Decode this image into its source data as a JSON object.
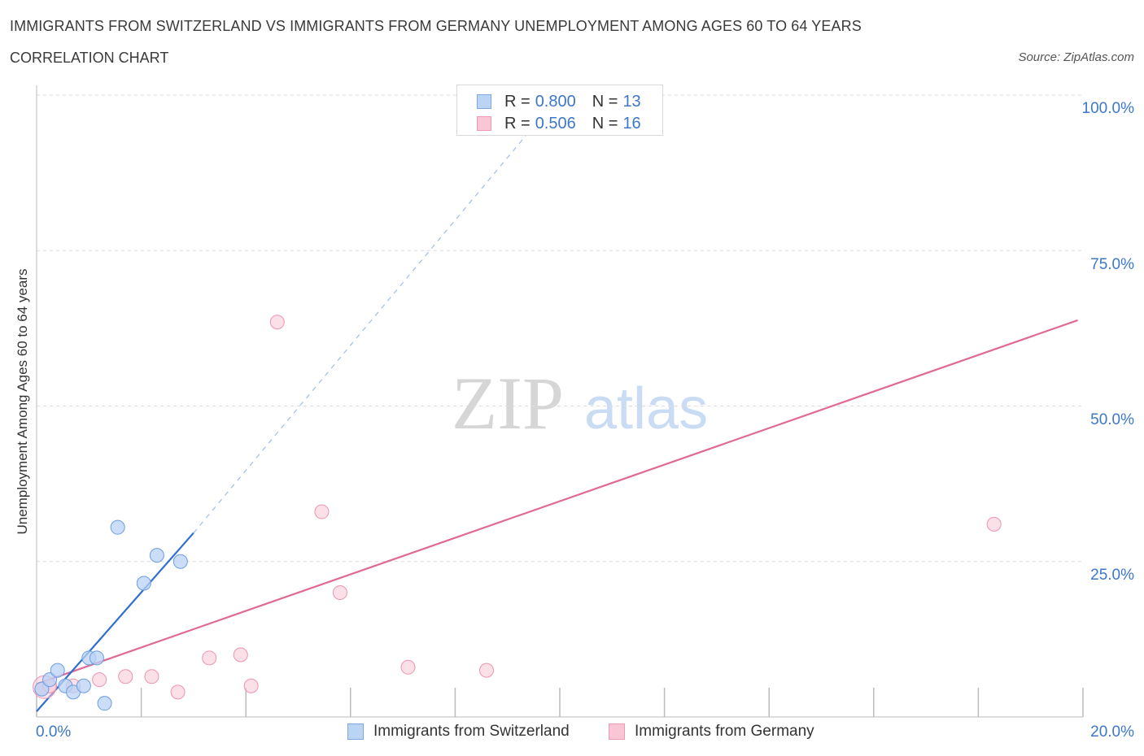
{
  "header": {
    "title": "IMMIGRANTS FROM SWITZERLAND VS IMMIGRANTS FROM GERMANY UNEMPLOYMENT AMONG AGES 60 TO 64 YEARS",
    "subtitle": "CORRELATION CHART",
    "source": "Source: ZipAtlas.com"
  },
  "watermark": {
    "zip": "ZIP",
    "atlas": "atlas"
  },
  "legend_stats": [
    {
      "r_label": "R =",
      "r_value": "0.800",
      "n_label": "N =",
      "n_value": "13",
      "fill": "#bcd4f4",
      "stroke": "#7fa8e0"
    },
    {
      "r_label": "R =",
      "r_value": "0.506",
      "n_label": "N =",
      "n_value": "16",
      "fill": "#f9c6d6",
      "stroke": "#ee9ab4"
    }
  ],
  "colors": {
    "blue_line": "#2f6fd0",
    "pink_line": "#e06a96",
    "blue_point_fill": "#b9d2f4",
    "blue_point_stroke": "#6d9ee0",
    "pink_point_fill": "#f9cbd9",
    "pink_point_stroke": "#ec95b1",
    "tick_text": "#3d78c8",
    "grid": "#dcdcdc"
  },
  "chart_data": {
    "type": "scatter",
    "title": "IMMIGRANTS FROM SWITZERLAND VS IMMIGRANTS FROM GERMANY UNEMPLOYMENT AMONG AGES 60 TO 64 YEARS",
    "xlabel": "",
    "ylabel": "Unemployment Among Ages 60 to 64 years",
    "xlim": [
      0,
      20
    ],
    "ylim": [
      0,
      100
    ],
    "x_tick_labels": [
      "0.0%",
      "20.0%"
    ],
    "y_tick_labels": [
      "25.0%",
      "50.0%",
      "75.0%",
      "100.0%"
    ],
    "y_tick_values": [
      25,
      50,
      75,
      100
    ],
    "grid": true,
    "legend_position": "bottom",
    "series": [
      {
        "name": "Immigrants from Switzerland",
        "points": [
          {
            "x": 0.1,
            "y": 4.5
          },
          {
            "x": 0.25,
            "y": 6.0
          },
          {
            "x": 0.4,
            "y": 7.5
          },
          {
            "x": 0.55,
            "y": 5.0
          },
          {
            "x": 0.7,
            "y": 4.0
          },
          {
            "x": 0.9,
            "y": 5.0
          },
          {
            "x": 1.0,
            "y": 9.5
          },
          {
            "x": 1.15,
            "y": 9.5
          },
          {
            "x": 1.3,
            "y": 2.2
          },
          {
            "x": 1.55,
            "y": 30.5
          },
          {
            "x": 2.05,
            "y": 21.5
          },
          {
            "x": 2.3,
            "y": 26.0
          },
          {
            "x": 2.75,
            "y": 25.0
          }
        ],
        "trend": {
          "x": [
            0,
            3.0
          ],
          "y": [
            0.9,
            29.6
          ],
          "dashed_extension_to": {
            "x": 10.0,
            "y": 100
          }
        }
      },
      {
        "name": "Immigrants from Germany",
        "points": [
          {
            "x": 0.1,
            "y": 4.5
          },
          {
            "x": 0.25,
            "y": 5.0
          },
          {
            "x": 0.7,
            "y": 5.0
          },
          {
            "x": 1.2,
            "y": 6.0
          },
          {
            "x": 1.7,
            "y": 6.5
          },
          {
            "x": 2.2,
            "y": 6.5
          },
          {
            "x": 2.7,
            "y": 4.0
          },
          {
            "x": 3.3,
            "y": 9.5
          },
          {
            "x": 3.9,
            "y": 10.0
          },
          {
            "x": 4.1,
            "y": 5.0
          },
          {
            "x": 4.6,
            "y": 63.5
          },
          {
            "x": 5.45,
            "y": 33.0
          },
          {
            "x": 5.8,
            "y": 20.0
          },
          {
            "x": 7.1,
            "y": 8.0
          },
          {
            "x": 8.6,
            "y": 7.5
          },
          {
            "x": 18.3,
            "y": 31.0
          }
        ],
        "trend": {
          "x": [
            0,
            19.9
          ],
          "y": [
            5.3,
            63.8
          ]
        }
      }
    ]
  }
}
